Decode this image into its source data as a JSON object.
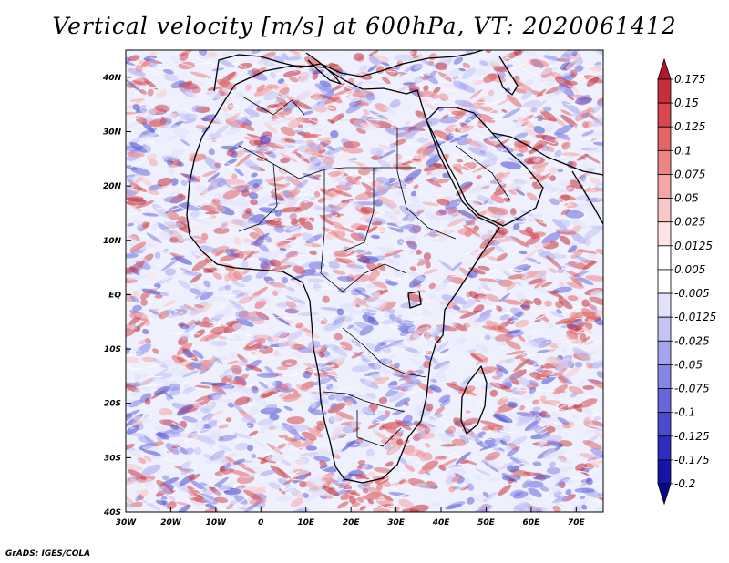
{
  "title": "Vertical velocity [m/s] at 600hPa, VT: 2020061412",
  "footer": "GrADS: IGES/COLA",
  "map": {
    "lon_labels": [
      "30W",
      "20W",
      "10W",
      "0",
      "10E",
      "20E",
      "30E",
      "40E",
      "50E",
      "60E",
      "70E"
    ],
    "lat_labels": [
      "40N",
      "30N",
      "20N",
      "10N",
      "EQ",
      "10S",
      "20S",
      "30S",
      "40S"
    ]
  },
  "colorbar": {
    "labels": [
      "0.175",
      "0.15",
      "0.125",
      "0.1",
      "0.075",
      "0.05",
      "0.025",
      "0.0125",
      "0.005",
      "-0.005",
      "-0.0125",
      "-0.025",
      "-0.05",
      "-0.075",
      "-0.1",
      "-0.125",
      "-0.175",
      "-0.2"
    ],
    "colors": [
      "#b2182b",
      "#c62f38",
      "#d6484d",
      "#e36565",
      "#ec8585",
      "#f4a6a6",
      "#f9c7c7",
      "#fde3e3",
      "#ffffff",
      "#ffffff",
      "#e1e1fb",
      "#c3c3f6",
      "#a4a4ef",
      "#8585e6",
      "#6767dc",
      "#4a4acf",
      "#2c2cbd",
      "#1414a6",
      "#08088a"
    ]
  },
  "colors": {
    "land_outline": "#000000",
    "positive": "#d6484d",
    "negative": "#5a5ad6"
  }
}
